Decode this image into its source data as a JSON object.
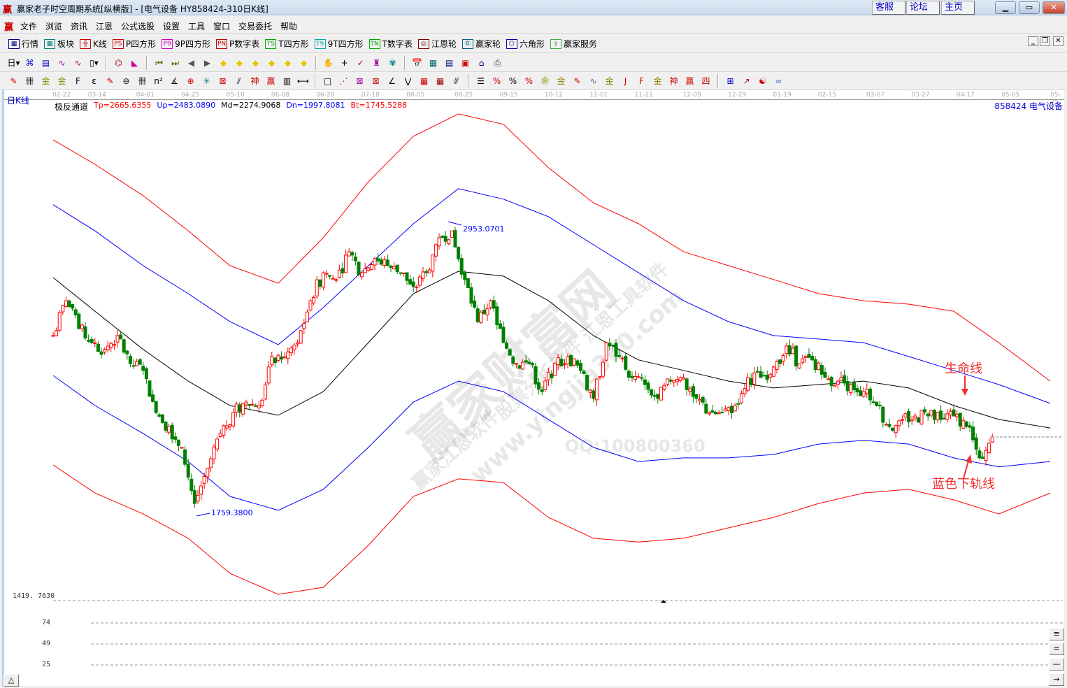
{
  "window": {
    "title": "赢家老子时空周期系统[纵横版] - [电气设备  HY858424-310日K线]",
    "logo": "赢",
    "links": [
      "客服",
      "论坛",
      "主页"
    ],
    "controls": [
      "minimize",
      "maximize",
      "close"
    ]
  },
  "menu": {
    "logo": "赢",
    "items": [
      "文件",
      "浏览",
      "资讯",
      "江恩",
      "公式选股",
      "设置",
      "工具",
      "窗口",
      "交易委托",
      "帮助"
    ]
  },
  "toolbar1": [
    {
      "icon": "quote-table-icon",
      "glyph": "▦",
      "label": "行情",
      "color": "#000080"
    },
    {
      "icon": "sector-icon",
      "glyph": "▩",
      "label": "板块",
      "color": "#008080"
    },
    {
      "icon": "kline-icon",
      "glyph": "╬",
      "label": "K线",
      "color": "#d00000"
    },
    {
      "icon": "ps-icon",
      "glyph": "PS",
      "label": "P四方形",
      "color": "#cc0000"
    },
    {
      "icon": "p9-icon",
      "glyph": "P9",
      "label": "9P四方形",
      "color": "#cc00cc"
    },
    {
      "icon": "pn-icon",
      "glyph": "PN",
      "label": "P数字表",
      "color": "#cc0000"
    },
    {
      "icon": "ts-icon",
      "glyph": "TS",
      "label": "T四方形",
      "color": "#00aa00"
    },
    {
      "icon": "t9-icon",
      "glyph": "T9",
      "label": "9T四方形",
      "color": "#00aaaa"
    },
    {
      "icon": "tn-icon",
      "glyph": "TN",
      "label": "T数字表",
      "color": "#00aa00"
    },
    {
      "icon": "gann-wheel-icon",
      "glyph": "◎",
      "label": "江恩轮",
      "color": "#800000"
    },
    {
      "icon": "big-wheel-icon",
      "glyph": "Ⓑ",
      "label": "赢家轮",
      "color": "#006080"
    },
    {
      "icon": "hexagon-icon",
      "glyph": "⬡",
      "label": "六角形",
      "color": "#0000aa"
    },
    {
      "icon": "dollar-icon",
      "glyph": "$",
      "label": "赢家服务",
      "color": "#44aa44"
    }
  ],
  "toolbar2": [
    [
      "period-day-dropdown-icon",
      "日▾",
      "#000"
    ],
    [
      "pattern-icon",
      "⌘",
      "#0000cc"
    ],
    [
      "list-icon",
      "▤",
      "#0000cc"
    ],
    [
      "wave3-icon",
      "∿",
      "#990099"
    ],
    [
      "wave9-icon",
      "∿",
      "#990033"
    ],
    [
      "candle-dropdown-icon",
      "▯▾",
      "#000"
    ],
    [
      "sep"
    ],
    [
      "gann-symbol-icon",
      "⌬",
      "#990000"
    ],
    [
      "triangle-flag-icon",
      "◣",
      "#cc0099"
    ],
    [
      "sep"
    ],
    [
      "first-icon",
      "⏮",
      "#666600"
    ],
    [
      "last-icon",
      "⏭",
      "#666600"
    ],
    [
      "prev-icon",
      "◀",
      "#555"
    ],
    [
      "next-icon",
      "▶",
      "#555"
    ],
    [
      "diamond-left-icon",
      "◆",
      "#e6c800"
    ],
    [
      "diamond-right-icon",
      "◆",
      "#e6c800"
    ],
    [
      "diamond-both-icon",
      "◆",
      "#e6c800"
    ],
    [
      "diamond-cross-icon",
      "◆",
      "#e6c800"
    ],
    [
      "diamond-expand-icon",
      "◆",
      "#e6c800"
    ],
    [
      "diamond-all-icon",
      "◆",
      "#e6c800"
    ],
    [
      "sep"
    ],
    [
      "hand-icon",
      "✋",
      "#000"
    ],
    [
      "crosshair-icon",
      "+",
      "#000"
    ],
    [
      "line-tool-icon",
      "✓",
      "#cc0000"
    ],
    [
      "figure-icon",
      "♜",
      "#990099"
    ],
    [
      "brain-icon",
      "✾",
      "#008080"
    ],
    [
      "sep"
    ],
    [
      "calendar-icon",
      "📅",
      "#cc0000"
    ],
    [
      "calculator-icon",
      "▦",
      "#006666"
    ],
    [
      "notes-icon",
      "▤",
      "#000080"
    ],
    [
      "save-icon",
      "▣",
      "#cc0000"
    ],
    [
      "network-icon",
      "⌂",
      "#000080"
    ],
    [
      "print-icon",
      "⎙",
      "#333"
    ]
  ],
  "toolbar3": [
    [
      "pen-icon",
      "✎",
      "#cc0000"
    ],
    [
      "grid4-icon",
      "卌",
      "#000"
    ],
    [
      "gold1-icon",
      "金",
      "#888800"
    ],
    [
      "gold2-icon",
      "金",
      "#888800"
    ],
    [
      "f-line-icon",
      "F",
      "#000"
    ],
    [
      "spiral-icon",
      "ε",
      "#000"
    ],
    [
      "pen2-icon",
      "✎",
      "#cc0000"
    ],
    [
      "circle-line-icon",
      "⊖",
      "#000"
    ],
    [
      "grid-icon",
      "卌",
      "#000"
    ],
    [
      "n2-icon",
      "n²",
      "#000"
    ],
    [
      "angle-icon",
      "∡",
      "#000"
    ],
    [
      "target-icon",
      "⊕",
      "#cc0000"
    ],
    [
      "web-icon",
      "✳",
      "#008080"
    ],
    [
      "box-web-icon",
      "⊠",
      "#cc0000"
    ],
    [
      "slash-icon",
      "⫽",
      "#000"
    ],
    [
      "shen-icon",
      "神",
      "#cc0000"
    ],
    [
      "ying-icon",
      "赢",
      "#cc0000"
    ],
    [
      "ruler-icon",
      "▥",
      "#000"
    ],
    [
      "span-icon",
      "⟷",
      "#000"
    ],
    [
      "sep"
    ],
    [
      "box-line-icon",
      "□",
      "#000"
    ],
    [
      "fan-icon",
      "⋰",
      "#cc0000"
    ],
    [
      "box-fan-icon",
      "⊠",
      "#990099"
    ],
    [
      "box-fan2-icon",
      "⊠",
      "#cc0000"
    ],
    [
      "fan-lines-icon",
      "∠",
      "#000"
    ],
    [
      "zigzag-icon",
      "⋁",
      "#000"
    ],
    [
      "grid-red-icon",
      "▦",
      "#cc0000"
    ],
    [
      "grid-box-icon",
      "▦",
      "#990000"
    ],
    [
      "parallel-icon",
      "⫻",
      "#000"
    ],
    [
      "sep"
    ],
    [
      "fib-table-icon",
      "☰",
      "#000"
    ],
    [
      "pct-line-icon",
      "%",
      "#cc0000"
    ],
    [
      "percent-icon",
      "%",
      "#000"
    ],
    [
      "pct-lines-icon",
      "%",
      "#cc0000"
    ],
    [
      "gold-circle-icon",
      "㊎",
      "#888800"
    ],
    [
      "gold-lines-icon",
      "金",
      "#888800"
    ],
    [
      "pen-lines-icon",
      "✎",
      "#cc0000"
    ],
    [
      "wave-line-icon",
      "∿",
      "#666"
    ],
    [
      "gold-box-icon",
      "金",
      "#888800"
    ],
    [
      "j-fan-icon",
      "J",
      "#cc0000"
    ],
    [
      "f-fan-icon",
      "F",
      "#cc0000"
    ],
    [
      "gold-fan-icon",
      "金",
      "#888800"
    ],
    [
      "shen-fan-icon",
      "神",
      "#cc0000"
    ],
    [
      "ying-fan-icon",
      "赢",
      "#cc0000"
    ],
    [
      "si-fan-icon",
      "四",
      "#cc0000"
    ],
    [
      "sep"
    ],
    [
      "grid-yellow-icon",
      "⊞",
      "#0000cc"
    ],
    [
      "chart-line-icon",
      "↗",
      "#cc0000"
    ],
    [
      "taiji-icon",
      "☯",
      "#cc0000"
    ],
    [
      "infinity-icon",
      "∞",
      "#3366cc"
    ]
  ],
  "chart": {
    "period_label": "日K线",
    "indicator_name": "极反通道",
    "indicator_values": [
      {
        "label": "Tp=2665.6355",
        "color": "#ff0000"
      },
      {
        "label": "Up=2483.0890",
        "color": "#0000ff"
      },
      {
        "label": "Md=2274.9068",
        "color": "#000000"
      },
      {
        "label": "Dn=1997.8081",
        "color": "#0000ff"
      },
      {
        "label": "Bt=1745.5288",
        "color": "#ff0000"
      }
    ],
    "stock_label": "858424  电气设备",
    "high_label": "2953.0701",
    "low_label": "1759.3800",
    "panel_level": "1419. 7630",
    "sub_levels": [
      "74",
      "49",
      "25"
    ],
    "annotations": {
      "life_line": "生命线",
      "lower_rail": "蓝色下轨线"
    },
    "watermarks": [
      "赢家财富网",
      "赢家江恩软件",
      "股票分析软件 江恩工具软件",
      "www.yingjia360.com",
      "QQ:100800360"
    ],
    "bottom_button": "△",
    "right_buttons": [
      "≡",
      "=",
      "—",
      "→"
    ]
  },
  "chart_data": {
    "type": "candlestick",
    "x_ticks": [
      {
        "bar": 2,
        "label": "02-22"
      },
      {
        "bar": 13,
        "label": "03-14"
      },
      {
        "bar": 28,
        "label": "04-01"
      },
      {
        "bar": 42,
        "label": "04-25"
      },
      {
        "bar": 56,
        "label": "05-18"
      },
      {
        "bar": 70,
        "label": "06-08"
      },
      {
        "bar": 84,
        "label": "06-28"
      },
      {
        "bar": 98,
        "label": "07-18"
      },
      {
        "bar": 112,
        "label": "08-05"
      },
      {
        "bar": 127,
        "label": "08-25"
      },
      {
        "bar": 141,
        "label": "09-15"
      },
      {
        "bar": 155,
        "label": "10-12"
      },
      {
        "bar": 169,
        "label": "11-01"
      },
      {
        "bar": 183,
        "label": "11-21"
      },
      {
        "bar": 198,
        "label": "12-09"
      },
      {
        "bar": 212,
        "label": "12-29"
      },
      {
        "bar": 226,
        "label": "01-19"
      },
      {
        "bar": 240,
        "label": "02-15"
      },
      {
        "bar": 255,
        "label": "03-07"
      },
      {
        "bar": 269,
        "label": "03-27"
      },
      {
        "bar": 283,
        "label": "04-17"
      },
      {
        "bar": 297,
        "label": "05-05"
      },
      {
        "bar": 311,
        "label": "05-25"
      }
    ],
    "channel_bars": [
      0,
      13,
      28,
      42,
      55,
      70,
      84,
      98,
      112,
      126,
      140,
      154,
      168,
      182,
      196,
      210,
      224,
      238,
      252,
      266,
      280,
      294,
      310
    ],
    "series": [
      {
        "name": "Tp",
        "color": "#ff0000",
        "values": [
          3297,
          3197,
          3068,
          2924,
          2781,
          2709,
          2896,
          3125,
          3312,
          3404,
          3361,
          3183,
          3039,
          2953,
          2838,
          2781,
          2724,
          2666,
          2637,
          2623,
          2594,
          2465,
          2307
        ]
      },
      {
        "name": "Up",
        "color": "#0000ff",
        "values": [
          3031,
          2924,
          2781,
          2666,
          2551,
          2457,
          2609,
          2781,
          2953,
          3097,
          3054,
          2982,
          2867,
          2752,
          2637,
          2551,
          2494,
          2480,
          2465,
          2408,
          2351,
          2293,
          2216
        ]
      },
      {
        "name": "Md",
        "color": "#000000",
        "values": [
          2732,
          2594,
          2437,
          2307,
          2207,
          2167,
          2264,
          2465,
          2666,
          2758,
          2738,
          2637,
          2494,
          2394,
          2351,
          2307,
          2279,
          2293,
          2307,
          2279,
          2207,
          2150,
          2115
        ]
      },
      {
        "name": "Dn",
        "color": "#0000ff",
        "values": [
          2330,
          2207,
          2092,
          1977,
          1834,
          1777,
          1863,
          2035,
          2221,
          2307,
          2264,
          2150,
          2035,
          1977,
          1992,
          1992,
          2006,
          2049,
          2064,
          2049,
          1992,
          1955,
          1977
        ]
      },
      {
        "name": "Bt",
        "color": "#ff0000",
        "values": [
          1963,
          1848,
          1762,
          1662,
          1518,
          1432,
          1461,
          1633,
          1834,
          1906,
          1891,
          1748,
          1662,
          1647,
          1662,
          1705,
          1748,
          1805,
          1848,
          1863,
          1820,
          1762,
          1848
        ]
      }
    ],
    "closes_every_4_bars": [
      2494,
      2637,
      2523,
      2465,
      2437,
      2494,
      2379,
      2351,
      2178,
      2121,
      2035,
      1805,
      1949,
      2092,
      2178,
      2221,
      2207,
      2408,
      2408,
      2465,
      2637,
      2752,
      2724,
      2838,
      2752,
      2810,
      2781,
      2752,
      2695,
      2752,
      2896,
      2924,
      2724,
      2551,
      2637,
      2465,
      2379,
      2379,
      2264,
      2379,
      2408,
      2351,
      2236,
      2465,
      2408,
      2322,
      2293,
      2236,
      2307,
      2322,
      2236,
      2178,
      2178,
      2207,
      2322,
      2322,
      2365,
      2451,
      2379,
      2394,
      2322,
      2307,
      2293,
      2264,
      2207,
      2121,
      2150,
      2164,
      2164,
      2150,
      2164,
      2121,
      1992,
      2078
    ],
    "high": 2953.0701,
    "low": 1759.38,
    "last_close_line": 2078,
    "up_color": "#ff0000",
    "down_color": "#008000"
  }
}
